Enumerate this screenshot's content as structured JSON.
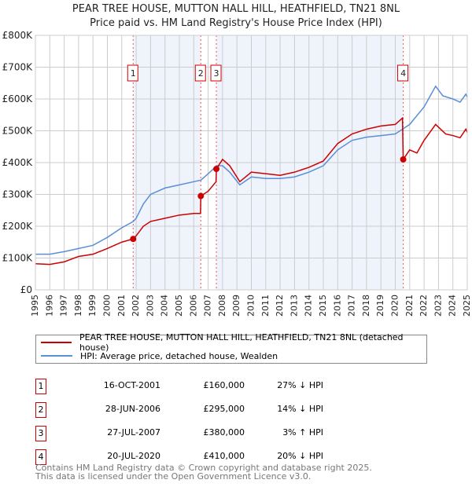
{
  "chart_data": {
    "type": "line",
    "title": "PEAR TREE HOUSE, MUTTON HALL HILL, HEATHFIELD, TN21 8NL",
    "subtitle": "Price paid vs. HM Land Registry's House Price Index (HPI)",
    "xlim": [
      1995,
      2025
    ],
    "ylim": [
      0,
      800000
    ],
    "x_ticks": [
      "1995",
      "1996",
      "1997",
      "1998",
      "1999",
      "2000",
      "2001",
      "2002",
      "2003",
      "2004",
      "2005",
      "2006",
      "2007",
      "2008",
      "2009",
      "2010",
      "2011",
      "2012",
      "2013",
      "2014",
      "2015",
      "2016",
      "2017",
      "2018",
      "2019",
      "2020",
      "2021",
      "2022",
      "2023",
      "2024",
      "2025"
    ],
    "y_ticks": [
      {
        "v": 0,
        "label": "£0"
      },
      {
        "v": 100000,
        "label": "£100K"
      },
      {
        "v": 200000,
        "label": "£200K"
      },
      {
        "v": 300000,
        "label": "£300K"
      },
      {
        "v": 400000,
        "label": "£400K"
      },
      {
        "v": 500000,
        "label": "£500K"
      },
      {
        "v": 600000,
        "label": "£600K"
      },
      {
        "v": 700000,
        "label": "£700K"
      },
      {
        "v": 800000,
        "label": "£800K"
      }
    ],
    "grid": true,
    "series": [
      {
        "name": "PEAR TREE HOUSE, MUTTON HALL HILL, HEATHFIELD, TN21 8NL (detached house)",
        "color": "#cc0000",
        "x": [
          1995,
          1996,
          1997,
          1998,
          1999,
          2000,
          2001,
          2001.79,
          2002,
          2002.5,
          2003,
          2004,
          2005,
          2006,
          2006.47,
          2006.49,
          2007,
          2007.55,
          2007.57,
          2008,
          2008.5,
          2009.2,
          2010,
          2011,
          2012,
          2013,
          2014,
          2015,
          2016,
          2017,
          2018,
          2019,
          2020,
          2020.5,
          2020.55,
          2021,
          2021.5,
          2022,
          2022.8,
          2023.5,
          2024,
          2024.5,
          2024.9,
          2025
        ],
        "y": [
          82000,
          80000,
          88000,
          105000,
          112000,
          130000,
          150000,
          160000,
          170000,
          200000,
          215000,
          225000,
          235000,
          240000,
          240000,
          295000,
          310000,
          340000,
          380000,
          410000,
          390000,
          340000,
          370000,
          365000,
          360000,
          370000,
          385000,
          405000,
          460000,
          490000,
          505000,
          515000,
          520000,
          540000,
          410000,
          440000,
          430000,
          470000,
          520000,
          490000,
          485000,
          478000,
          505000,
          495000
        ]
      },
      {
        "name": "HPI: Average price, detached house, Wealden",
        "color": "#5b8fd6",
        "x": [
          1995,
          1996,
          1997,
          1998,
          1999,
          2000,
          2001,
          2001.8,
          2002,
          2002.5,
          2003,
          2004,
          2005,
          2006,
          2006.5,
          2007,
          2007.6,
          2008,
          2008.5,
          2009.2,
          2010,
          2011,
          2012,
          2013,
          2014,
          2015,
          2016,
          2017,
          2018,
          2019,
          2020,
          2020.5,
          2021,
          2022,
          2022.8,
          2023.3,
          2024,
          2024.5,
          2024.9,
          2025
        ],
        "y": [
          112000,
          112000,
          120000,
          130000,
          140000,
          165000,
          195000,
          215000,
          225000,
          270000,
          300000,
          320000,
          330000,
          340000,
          345000,
          365000,
          390000,
          390000,
          370000,
          330000,
          355000,
          350000,
          350000,
          355000,
          370000,
          390000,
          440000,
          470000,
          480000,
          485000,
          490000,
          505000,
          520000,
          575000,
          640000,
          610000,
          600000,
          590000,
          615000,
          605000
        ]
      }
    ],
    "shaded_ranges": [
      [
        2001.79,
        2006.49
      ],
      [
        2007.57,
        2020.55
      ]
    ],
    "sales": [
      {
        "n": "1",
        "x": 2001.79,
        "date": "16-OCT-2001",
        "price": "£160,000",
        "value": 160000,
        "hpi": "27% ↓ HPI"
      },
      {
        "n": "2",
        "x": 2006.49,
        "date": "28-JUN-2006",
        "price": "£295,000",
        "value": 295000,
        "hpi": "14% ↓ HPI"
      },
      {
        "n": "3",
        "x": 2007.57,
        "date": "27-JUL-2007",
        "price": "£380,000",
        "value": 380000,
        "hpi": "3% ↑ HPI"
      },
      {
        "n": "4",
        "x": 2020.55,
        "date": "20-JUL-2020",
        "price": "£410,000",
        "value": 410000,
        "hpi": "20% ↓ HPI"
      }
    ]
  },
  "footer": {
    "line1": "Contains HM Land Registry data © Crown copyright and database right 2025.",
    "line2": "This data is licensed under the Open Government Licence v3.0."
  }
}
